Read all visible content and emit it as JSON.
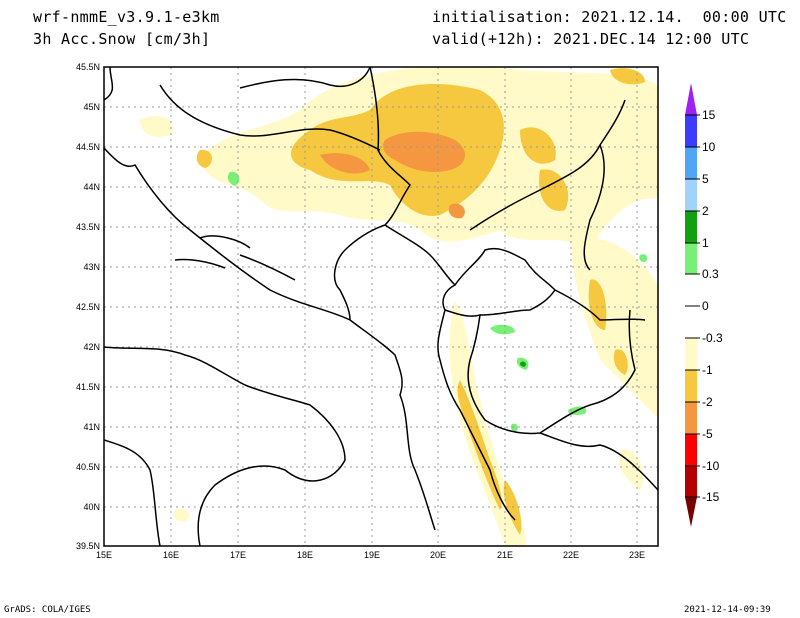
{
  "header": {
    "model": "wrf-nmmE_v3.9.1-e3km",
    "field": "3h Acc.Snow [cm/3h]",
    "init": "initialisation: 2021.12.14.  00:00 UTC",
    "valid": "valid(+12h): 2021.DEC.14 12:00 UTC"
  },
  "map": {
    "lat_labels": [
      "45.5N",
      "45N",
      "44.5N",
      "44N",
      "43.5N",
      "43N",
      "42.5N",
      "42N",
      "41.5N",
      "41N",
      "40.5N",
      "40N",
      "39.5N"
    ],
    "lon_labels": [
      "15E",
      "16E",
      "17E",
      "18E",
      "19E",
      "20E",
      "21E",
      "22E",
      "23E"
    ],
    "fill_colors": {
      "light": "#fffac8",
      "mid": "#f5c840",
      "heavy": "#f59640",
      "green": "#78f078",
      "darkgreen": "#10a010"
    }
  },
  "colorbar": {
    "labels": [
      "15",
      "10",
      "5",
      "2",
      "1",
      "0.3",
      "0",
      "-0.3",
      "-1",
      "-2",
      "-5",
      "-10",
      "-15"
    ],
    "colors": [
      "#a020f0",
      "#3c3cff",
      "#50a5f5",
      "#a0d2fa",
      "#10a010",
      "#78f078",
      "#ffffff",
      "#ffffff",
      "#fffac8",
      "#f5c840",
      "#f59640",
      "#ff0000",
      "#b40000",
      "#780000"
    ]
  },
  "footer": {
    "left": "GrADS: COLA/IGES",
    "right": "2021-12-14-09:39"
  }
}
